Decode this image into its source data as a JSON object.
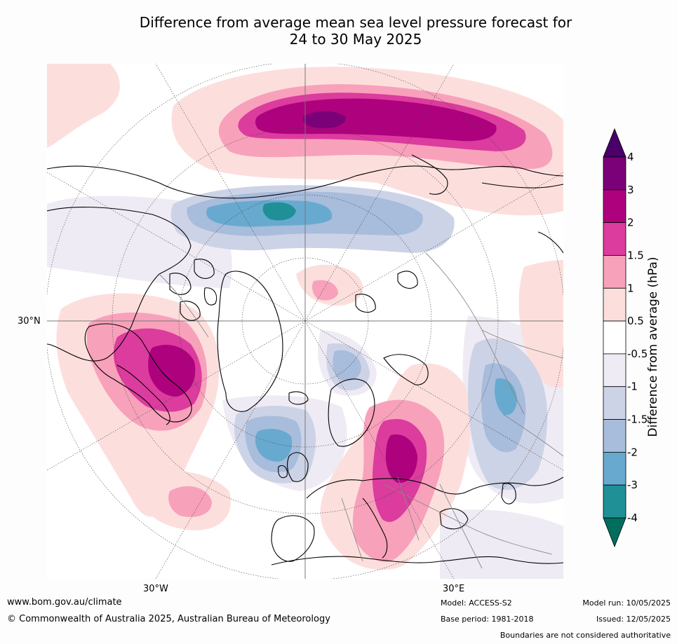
{
  "title_line1": "Difference from average mean sea level pressure forecast for",
  "title_line2": "24 to 30 May 2025",
  "map_labels": {
    "lat": "30°N",
    "lon_w": "30°W",
    "lon_e": "30°E"
  },
  "colorbar": {
    "title": "Difference from average (hPa)",
    "levels": [
      "-4",
      "-3",
      "-2",
      "-1.5",
      "-1",
      "-0.5",
      "0.5",
      "1",
      "1.5",
      "2",
      "3",
      "4"
    ],
    "colors": {
      "below_-4": "#006e5e",
      "-4_-3": "#1f9196",
      "-3_-2": "#68aacf",
      "-2_-1.5": "#a8bcdc",
      "-1.5_-1": "#cdd3e6",
      "-1_-0.5": "#efebf4",
      "-0.5_0.5": "#ffffff",
      "0.5_1": "#fcdfdd",
      "1_1.5": "#f8a1bb",
      "1.5_2": "#db3c9d",
      "2_3": "#ae017e",
      "3_4": "#7a0177",
      "above_4": "#49006a"
    }
  },
  "footer": {
    "website": "www.bom.gov.au/climate",
    "copyright": "© Commonwealth of Australia 2025, Australian Bureau of Meteorology",
    "model": "Model: ACCESS-S2",
    "base_period": "Base period: 1981-2018",
    "model_run": "Model run: 10/05/2025",
    "issued": "Issued: 12/05/2025",
    "disclaimer": "Boundaries are not considered authoritative"
  }
}
